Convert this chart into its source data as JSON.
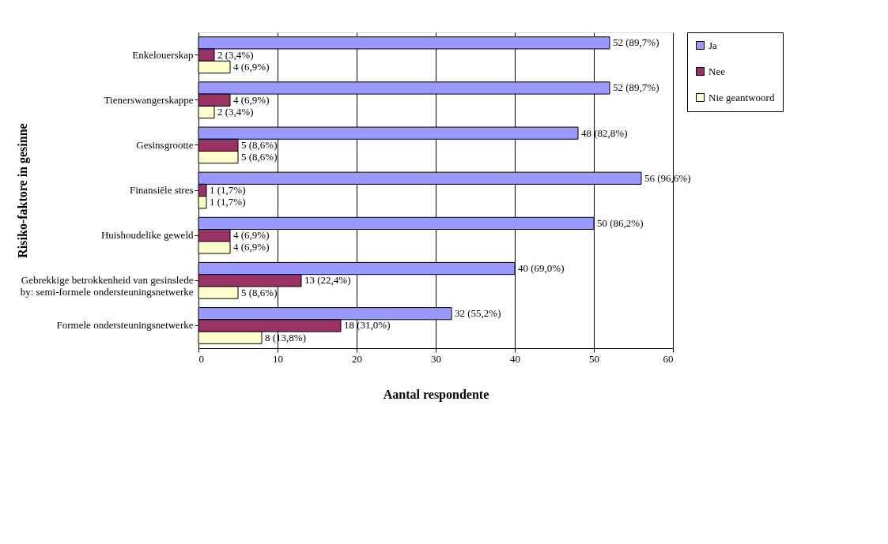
{
  "chart_data": {
    "type": "bar",
    "orientation": "horizontal",
    "xlabel": "Aantal respondente",
    "ylabel": "Risiko-faktore in gesinne",
    "categories": [
      "Enkelouerskap",
      "Tienerswangerskappe",
      "Gesinsgrootte",
      "Finansiële stres",
      "Huishoudelike geweld",
      "Gebrekkige betrokkenheid van gesinslede by: semi-formele ondersteuningsnetwerke",
      "Formele ondersteuningsnetwerke"
    ],
    "series": [
      {
        "name": "Ja",
        "color": "#9999ff",
        "values": [
          52,
          52,
          48,
          56,
          50,
          40,
          32
        ],
        "value_labels": [
          "52 (89,7%)",
          "52 (89,7%)",
          "48 (82,8%)",
          "56 (96,6%)",
          "50 (86,2%)",
          "40 (69,0%)",
          "32 (55,2%)"
        ]
      },
      {
        "name": "Nee",
        "color": "#993366",
        "values": [
          2,
          4,
          5,
          1,
          4,
          13,
          18
        ],
        "value_labels": [
          "2 (3,4%)",
          "4 (6,9%)",
          "5 (8,6%)",
          "1 (1,7%)",
          "4 (6,9%)",
          "13 (22,4%)",
          "18 (31,0%)"
        ]
      },
      {
        "name": "Nie geantwoord",
        "color": "#ffffcc",
        "values": [
          4,
          2,
          5,
          1,
          4,
          5,
          8
        ],
        "value_labels": [
          "4 (6,9%)",
          "2 (3,4%)",
          "5 (8,6%)",
          "1 (1,7%)",
          "4 (6,9%)",
          "5 (8,6%)",
          "8 (13,8%)"
        ]
      }
    ],
    "xlim": [
      0,
      60
    ],
    "xticks": [
      0,
      10,
      20,
      30,
      40,
      50,
      60
    ],
    "grid": "x",
    "legend": "right"
  }
}
